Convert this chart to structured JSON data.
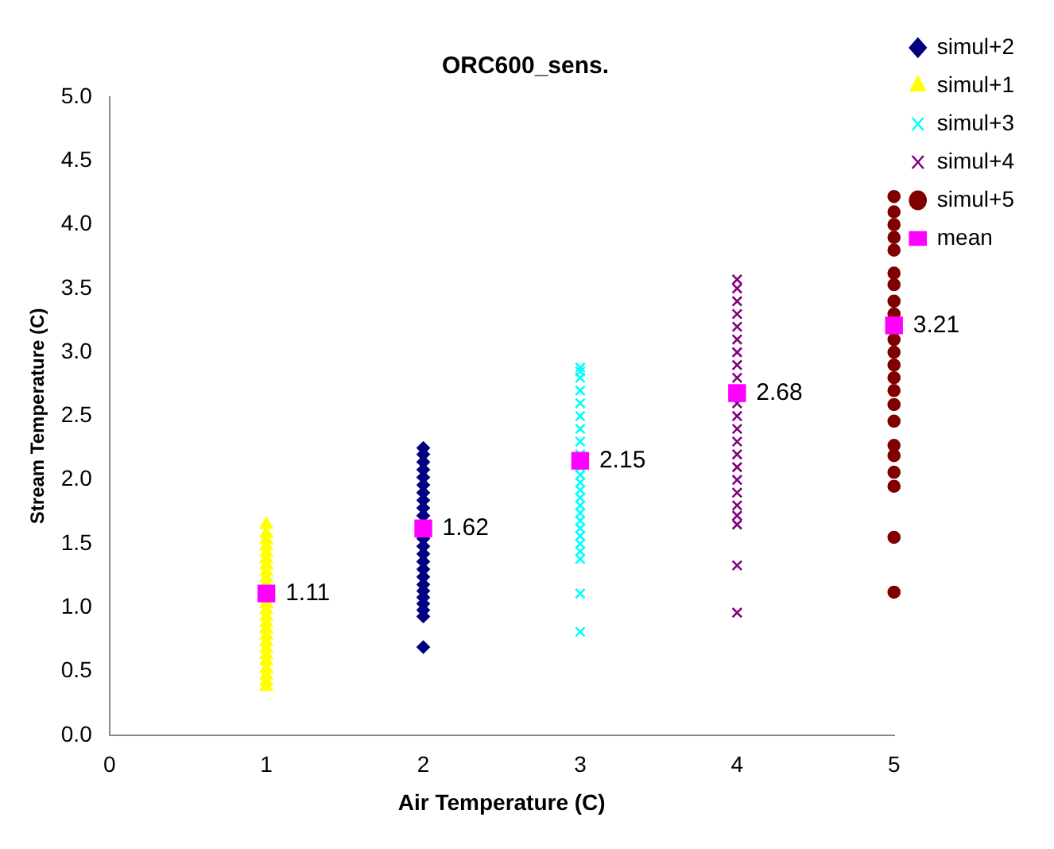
{
  "chart_data": {
    "type": "scatter",
    "title": "ORC600_sens.",
    "xlabel": "Air Temperature (C)",
    "ylabel": "Stream Temperature (C)",
    "xlim": [
      0,
      5
    ],
    "xticks": [
      0,
      1,
      2,
      3,
      4,
      5
    ],
    "ylim": [
      0,
      5
    ],
    "yticks": [
      {
        "value": 0,
        "label": "0.0"
      },
      {
        "value": 0.5,
        "label": "0.5"
      },
      {
        "value": 1,
        "label": "1.0"
      },
      {
        "value": 1.5,
        "label": "1.5"
      },
      {
        "value": 2,
        "label": "2.0"
      },
      {
        "value": 2.5,
        "label": "2.5"
      },
      {
        "value": 3,
        "label": "3.0"
      },
      {
        "value": 3.5,
        "label": "3.5"
      },
      {
        "value": 4,
        "label": "4.0"
      },
      {
        "value": 4.5,
        "label": "4.5"
      },
      {
        "value": 5,
        "label": "5.0"
      }
    ],
    "grid": false,
    "legend": "top right",
    "series": [
      {
        "name": "simul+2",
        "color": "#000080",
        "marker": "diamond",
        "x": [
          2,
          2,
          2,
          2,
          2,
          2,
          2,
          2,
          2,
          2,
          2,
          2,
          2,
          2,
          2,
          2,
          2,
          2,
          2,
          2,
          2,
          2,
          2
        ],
        "values": [
          0.69,
          0.93,
          0.98,
          1.03,
          1.08,
          1.13,
          1.18,
          1.24,
          1.3,
          1.36,
          1.42,
          1.48,
          1.54,
          1.72,
          1.78,
          1.84,
          1.9,
          1.96,
          2.02,
          2.08,
          2.14,
          2.2,
          2.25
        ]
      },
      {
        "name": "simul+1",
        "color": "#ffff00",
        "marker": "triangle",
        "x": [
          1,
          1,
          1,
          1,
          1,
          1,
          1,
          1,
          1,
          1,
          1,
          1,
          1,
          1,
          1,
          1,
          1,
          1,
          1,
          1,
          1,
          1,
          1,
          1
        ],
        "values": [
          0.38,
          0.42,
          0.47,
          0.52,
          0.58,
          0.63,
          0.68,
          0.73,
          0.78,
          0.83,
          0.88,
          0.93,
          0.98,
          1.03,
          1.18,
          1.23,
          1.28,
          1.33,
          1.38,
          1.43,
          1.48,
          1.53,
          1.58,
          1.65
        ]
      },
      {
        "name": "simul+3",
        "color": "#00ffff",
        "marker": "cross",
        "x": [
          3,
          3,
          3,
          3,
          3,
          3,
          3,
          3,
          3,
          3,
          3,
          3,
          3,
          3,
          3,
          3,
          3,
          3,
          3,
          3,
          3,
          3,
          3,
          3
        ],
        "values": [
          0.81,
          1.11,
          1.38,
          1.44,
          1.5,
          1.56,
          1.62,
          1.68,
          1.74,
          1.8,
          1.86,
          1.92,
          1.98,
          2.04,
          2.1,
          2.2,
          2.3,
          2.4,
          2.5,
          2.6,
          2.7,
          2.8,
          2.85,
          2.88
        ]
      },
      {
        "name": "simul+4",
        "color": "#800080",
        "marker": "cross",
        "x": [
          4,
          4,
          4,
          4,
          4,
          4,
          4,
          4,
          4,
          4,
          4,
          4,
          4,
          4,
          4,
          4,
          4,
          4,
          4,
          4,
          4,
          4
        ],
        "values": [
          0.96,
          1.33,
          1.65,
          1.72,
          1.8,
          1.9,
          2.0,
          2.1,
          2.2,
          2.3,
          2.4,
          2.5,
          2.6,
          2.8,
          2.9,
          3.0,
          3.1,
          3.2,
          3.3,
          3.4,
          3.5,
          3.57
        ]
      },
      {
        "name": "simul+5",
        "color": "#800000",
        "marker": "circle",
        "x": [
          5,
          5,
          5,
          5,
          5,
          5,
          5,
          5,
          5,
          5,
          5,
          5,
          5,
          5,
          5,
          5,
          5,
          5,
          5,
          5,
          5,
          5
        ],
        "values": [
          1.12,
          1.55,
          1.95,
          2.06,
          2.19,
          2.27,
          2.46,
          2.59,
          2.7,
          2.8,
          2.9,
          3.0,
          3.1,
          3.3,
          3.4,
          3.53,
          3.62,
          3.8,
          3.9,
          4.0,
          4.1,
          4.22
        ]
      },
      {
        "name": "mean",
        "color": "#ff00ff",
        "marker": "square",
        "x": [
          1,
          2,
          3,
          4,
          5
        ],
        "values": [
          1.11,
          1.62,
          2.15,
          2.68,
          3.21
        ],
        "value_labels": [
          "1.11",
          "1.62",
          "2.15",
          "2.68",
          "3.21"
        ]
      }
    ]
  }
}
